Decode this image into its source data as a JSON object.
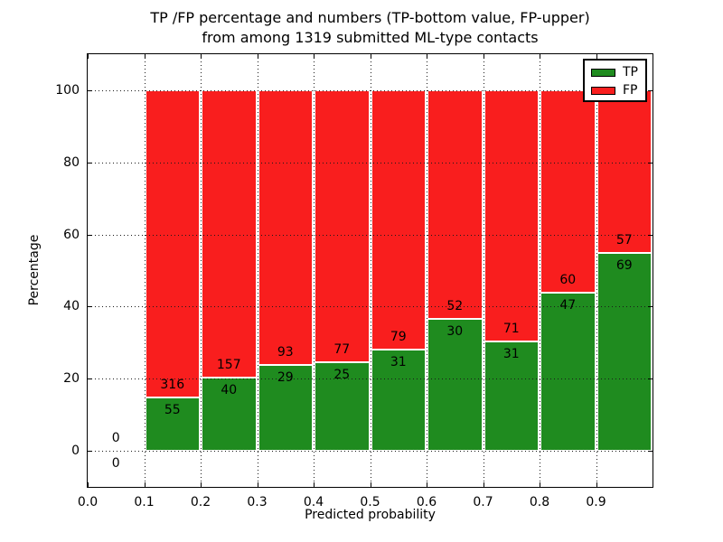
{
  "title": {
    "line1": "TP /FP percentage and numbers (TP-bottom value, FP-upper)",
    "line2": "from among 1319 submitted ML-type contacts"
  },
  "axes": {
    "xlabel": "Predicted probability",
    "ylabel": "Percentage",
    "x_tick_labels": [
      "0.0",
      "0.1",
      "0.2",
      "0.3",
      "0.4",
      "0.5",
      "0.6",
      "0.7",
      "0.8",
      "0.9"
    ],
    "y_tick_labels": [
      "0",
      "20",
      "40",
      "60",
      "80",
      "100"
    ],
    "y_tick_values": [
      0,
      20,
      40,
      60,
      80,
      100
    ],
    "xlim": [
      0.0,
      1.0
    ],
    "ylim": [
      -10,
      110
    ],
    "grid_style": "dotted"
  },
  "legend": {
    "position": "upper right",
    "items": [
      {
        "label": "TP",
        "color": "#1f8b1f"
      },
      {
        "label": "FP",
        "color": "#f91e1e"
      }
    ]
  },
  "chart_data": {
    "type": "bar",
    "subtype": "stacked-normalized-percent",
    "title": "TP /FP percentage and numbers (TP-bottom value, FP-upper)\nfrom among 1319 submitted ML-type contacts",
    "xlabel": "Predicted probability",
    "ylabel": "Percentage",
    "bin_edges": [
      0.0,
      0.1,
      0.2,
      0.3,
      0.4,
      0.5,
      0.6,
      0.7,
      0.8,
      0.9,
      1.0
    ],
    "series": [
      {
        "name": "TP",
        "color": "#1f8b1f",
        "counts": [
          0,
          55,
          40,
          29,
          25,
          31,
          30,
          31,
          47,
          69
        ]
      },
      {
        "name": "FP",
        "color": "#f91e1e",
        "counts": [
          0,
          316,
          157,
          93,
          77,
          79,
          52,
          71,
          60,
          57
        ]
      }
    ],
    "tp_percent_per_bin": [
      0,
      14.82,
      20.3,
      23.77,
      24.51,
      28.18,
      36.59,
      30.39,
      43.93,
      54.76
    ],
    "total_contacts": 1319,
    "xlim": [
      0.0,
      1.0
    ],
    "ylim": [
      -10,
      110
    ],
    "grid": true,
    "legend_position": "upper right"
  },
  "colors": {
    "tp": "#1f8b1f",
    "fp": "#f91e1e",
    "grid": "#1a1a1a",
    "text": "#000000",
    "background": "#ffffff"
  }
}
